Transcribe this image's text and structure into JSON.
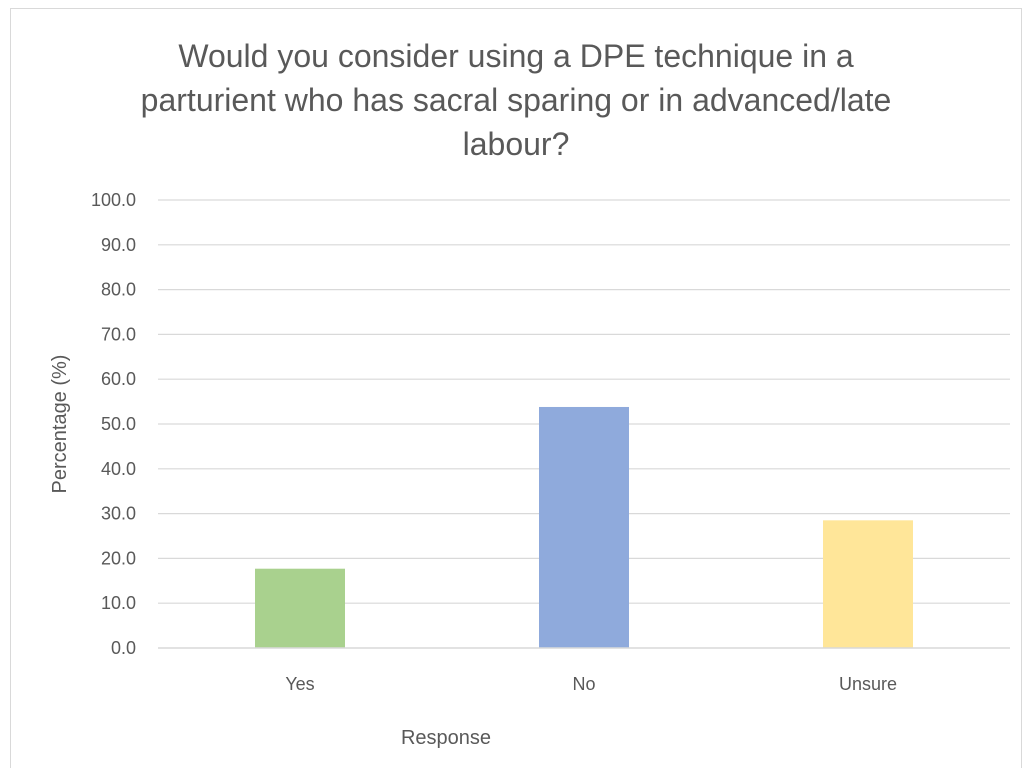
{
  "chart_data": {
    "type": "bar",
    "title_lines": [
      "Would you consider using a DPE technique in a",
      "parturient who has sacral sparing or in advanced/late",
      "labour?"
    ],
    "categories": [
      "Yes",
      "No",
      "Unsure"
    ],
    "values": [
      17.7,
      53.8,
      28.5
    ],
    "bar_colors": [
      "#a9d18e",
      "#8faadc",
      "#ffe699"
    ],
    "xlabel": "Response",
    "ylabel": "Percentage (%)",
    "ylim": [
      0,
      100
    ],
    "yticks": [
      "0.0",
      "10.0",
      "20.0",
      "30.0",
      "40.0",
      "50.0",
      "60.0",
      "70.0",
      "80.0",
      "90.0",
      "100.0"
    ],
    "grid": true,
    "legend": "none"
  }
}
